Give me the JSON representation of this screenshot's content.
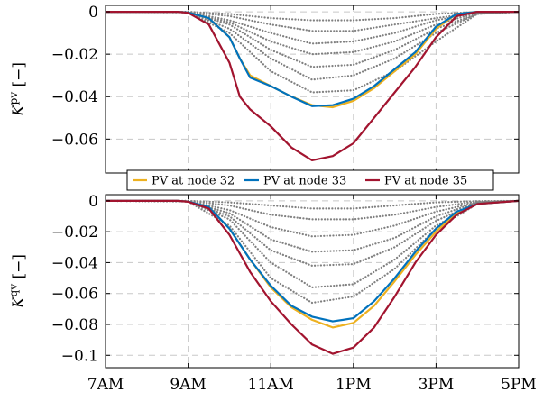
{
  "chart_data": [
    {
      "type": "line",
      "ylabel": "K^pv [−]",
      "ylabel_main": "K",
      "ylabel_sup": "pv",
      "ylabel_unit": " [−]",
      "xlim": [
        7,
        17
      ],
      "ylim": [
        -0.076,
        0.003
      ],
      "yticks": [
        0,
        -0.02,
        -0.04,
        -0.06
      ],
      "ytick_labels": [
        "0",
        "−0.02",
        "−0.04",
        "−0.06"
      ],
      "grid": true,
      "legend": "bottom-right",
      "colors": {
        "node32": "#EDB120",
        "node33": "#0072BD",
        "node35": "#A2142F",
        "other": "#808080"
      },
      "series": [
        {
          "name": "PV at node 32",
          "color": "#EDB120",
          "style": "solid",
          "x": [
            7,
            8,
            8.75,
            9,
            9.5,
            10,
            10.25,
            10.5,
            11,
            11.5,
            12,
            12.5,
            13,
            13.5,
            14,
            14.5,
            15,
            15.5,
            16,
            17
          ],
          "y": [
            0,
            0,
            0,
            -0.0003,
            -0.003,
            -0.012,
            -0.022,
            -0.03,
            -0.035,
            -0.04,
            -0.044,
            -0.045,
            -0.042,
            -0.036,
            -0.028,
            -0.02,
            -0.008,
            -0.001,
            0,
            0
          ]
        },
        {
          "name": "PV at node 33",
          "color": "#0072BD",
          "style": "solid",
          "x": [
            7,
            8,
            8.75,
            9,
            9.5,
            10,
            10.25,
            10.5,
            11,
            11.5,
            12,
            12.5,
            13,
            13.5,
            14,
            14.5,
            15,
            15.5,
            16,
            17
          ],
          "y": [
            0,
            0,
            0,
            -0.0003,
            -0.003,
            -0.012,
            -0.022,
            -0.031,
            -0.035,
            -0.04,
            -0.0445,
            -0.044,
            -0.041,
            -0.035,
            -0.027,
            -0.019,
            -0.007,
            -0.001,
            0,
            0
          ]
        },
        {
          "name": "PV at node 35",
          "color": "#A2142F",
          "style": "solid",
          "x": [
            7,
            8,
            8.75,
            9,
            9.5,
            10,
            10.25,
            10.5,
            11,
            11.5,
            12,
            12.5,
            13,
            13.5,
            14,
            14.5,
            15,
            15.5,
            16,
            17
          ],
          "y": [
            0,
            0,
            0,
            -0.0005,
            -0.006,
            -0.024,
            -0.04,
            -0.046,
            -0.054,
            -0.064,
            -0.07,
            -0.068,
            -0.062,
            -0.05,
            -0.038,
            -0.026,
            -0.012,
            -0.002,
            0,
            0
          ]
        },
        {
          "color": "#808080",
          "style": "dotted",
          "x": [
            7,
            9,
            10,
            11,
            12,
            13,
            14,
            15,
            16,
            17
          ],
          "y": [
            0,
            -0.0002,
            -0.008,
            -0.022,
            -0.032,
            -0.03,
            -0.022,
            -0.01,
            -0.001,
            0
          ]
        },
        {
          "color": "#808080",
          "style": "dotted",
          "x": [
            7,
            9,
            10,
            11,
            12,
            13,
            14,
            15,
            16,
            17
          ],
          "y": [
            0,
            -0.0002,
            -0.006,
            -0.018,
            -0.026,
            -0.025,
            -0.018,
            -0.008,
            -0.001,
            0
          ]
        },
        {
          "color": "#808080",
          "style": "dotted",
          "x": [
            7,
            9,
            10,
            11,
            12,
            13,
            14,
            15,
            16,
            17
          ],
          "y": [
            0,
            -0.0002,
            -0.005,
            -0.014,
            -0.02,
            -0.019,
            -0.014,
            -0.006,
            -0.0005,
            0
          ]
        },
        {
          "color": "#808080",
          "style": "dotted",
          "x": [
            7,
            9,
            10,
            11,
            12,
            13,
            14,
            15,
            16,
            17
          ],
          "y": [
            0,
            -0.0001,
            -0.004,
            -0.01,
            -0.015,
            -0.014,
            -0.01,
            -0.004,
            -0.0005,
            0
          ]
        },
        {
          "color": "#808080",
          "style": "dotted",
          "x": [
            7,
            9,
            10,
            11,
            12,
            13,
            14,
            15,
            16,
            17
          ],
          "y": [
            0,
            -0.0001,
            -0.002,
            -0.006,
            -0.009,
            -0.009,
            -0.006,
            -0.003,
            -0.0003,
            0
          ]
        },
        {
          "color": "#808080",
          "style": "dotted",
          "x": [
            7,
            9,
            10,
            11,
            12,
            13,
            14,
            15,
            16,
            17
          ],
          "y": [
            0,
            0,
            -0.001,
            -0.003,
            -0.004,
            -0.004,
            -0.003,
            -0.001,
            -0.0001,
            0
          ]
        },
        {
          "color": "#808080",
          "style": "dotted",
          "x": [
            7,
            9,
            10,
            11,
            12,
            13,
            14,
            15,
            16,
            17
          ],
          "y": [
            0,
            -0.0003,
            -0.01,
            -0.028,
            -0.038,
            -0.037,
            -0.028,
            -0.014,
            -0.001,
            0
          ]
        }
      ]
    },
    {
      "type": "line",
      "ylabel": "K^qv [−]",
      "ylabel_main": "K",
      "ylabel_sup": "qv",
      "ylabel_unit": " [−]",
      "xlim": [
        7,
        17
      ],
      "ylim": [
        -0.108,
        0.004
      ],
      "yticks": [
        0,
        -0.02,
        -0.04,
        -0.06,
        -0.08,
        -0.1
      ],
      "ytick_labels": [
        "0",
        "−0.02",
        "−0.04",
        "−0.06",
        "−0.08",
        "−0.1"
      ],
      "xticks": [
        7,
        9,
        11,
        13,
        15,
        17
      ],
      "xtick_labels": [
        "7AM",
        "9AM",
        "11AM",
        "1PM",
        "3PM",
        "5PM"
      ],
      "grid": true,
      "series": [
        {
          "name": "PV at node 32",
          "color": "#EDB120",
          "style": "solid",
          "x": [
            7,
            8,
            8.75,
            9,
            9.5,
            10,
            10.5,
            11,
            11.5,
            12,
            12.5,
            13,
            13.5,
            14,
            14.5,
            15,
            15.5,
            16,
            17
          ],
          "y": [
            0,
            0,
            0,
            -0.0005,
            -0.004,
            -0.018,
            -0.038,
            -0.056,
            -0.069,
            -0.077,
            -0.082,
            -0.079,
            -0.068,
            -0.052,
            -0.035,
            -0.02,
            -0.008,
            -0.002,
            0
          ]
        },
        {
          "name": "PV at node 33",
          "color": "#0072BD",
          "style": "solid",
          "x": [
            7,
            8,
            8.75,
            9,
            9.5,
            10,
            10.5,
            11,
            11.5,
            12,
            12.5,
            13,
            13.5,
            14,
            14.5,
            15,
            15.5,
            16,
            17
          ],
          "y": [
            0,
            0,
            0,
            -0.0005,
            -0.004,
            -0.018,
            -0.038,
            -0.055,
            -0.068,
            -0.075,
            -0.078,
            -0.076,
            -0.065,
            -0.05,
            -0.033,
            -0.018,
            -0.007,
            -0.002,
            0
          ]
        },
        {
          "name": "PV at node 35",
          "color": "#A2142F",
          "style": "solid",
          "x": [
            7,
            8,
            8.75,
            9,
            9.5,
            10,
            10.5,
            11,
            11.5,
            12,
            12.5,
            13,
            13.5,
            14,
            14.5,
            15,
            15.5,
            16,
            17
          ],
          "y": [
            0,
            0,
            0,
            -0.0006,
            -0.005,
            -0.022,
            -0.046,
            -0.065,
            -0.08,
            -0.093,
            -0.099,
            -0.095,
            -0.082,
            -0.062,
            -0.04,
            -0.022,
            -0.009,
            -0.002,
            0
          ]
        },
        {
          "color": "#808080",
          "style": "dotted",
          "x": [
            7,
            9,
            10,
            11,
            12,
            13,
            14,
            15,
            16,
            17
          ],
          "y": [
            0,
            -0.0005,
            -0.016,
            -0.05,
            -0.066,
            -0.062,
            -0.044,
            -0.018,
            -0.002,
            0
          ]
        },
        {
          "color": "#808080",
          "style": "dotted",
          "x": [
            7,
            9,
            10,
            11,
            12,
            13,
            14,
            15,
            16,
            17
          ],
          "y": [
            0,
            -0.0004,
            -0.012,
            -0.04,
            -0.056,
            -0.054,
            -0.038,
            -0.016,
            -0.002,
            0
          ]
        },
        {
          "color": "#808080",
          "style": "dotted",
          "x": [
            7,
            9,
            10,
            11,
            12,
            13,
            14,
            15,
            16,
            17
          ],
          "y": [
            0,
            -0.0003,
            -0.01,
            -0.032,
            -0.042,
            -0.041,
            -0.03,
            -0.013,
            -0.001,
            0
          ]
        },
        {
          "color": "#808080",
          "style": "dotted",
          "x": [
            7,
            9,
            10,
            11,
            12,
            13,
            14,
            15,
            16,
            17
          ],
          "y": [
            0,
            -0.0003,
            -0.008,
            -0.025,
            -0.033,
            -0.032,
            -0.024,
            -0.01,
            -0.001,
            0
          ]
        },
        {
          "color": "#808080",
          "style": "dotted",
          "x": [
            7,
            9,
            10,
            11,
            12,
            13,
            14,
            15,
            16,
            17
          ],
          "y": [
            0,
            -0.0002,
            -0.006,
            -0.017,
            -0.023,
            -0.022,
            -0.016,
            -0.007,
            -0.001,
            0
          ]
        },
        {
          "color": "#808080",
          "style": "dotted",
          "x": [
            7,
            9,
            10,
            11,
            12,
            13,
            14,
            15,
            16,
            17
          ],
          "y": [
            0,
            -0.0001,
            -0.003,
            -0.009,
            -0.012,
            -0.012,
            -0.009,
            -0.004,
            -0.0005,
            0
          ]
        },
        {
          "color": "#808080",
          "style": "dotted",
          "x": [
            7,
            9,
            10,
            11,
            12,
            13,
            14,
            15,
            16,
            17
          ],
          "y": [
            0,
            0,
            -0.001,
            -0.003,
            -0.005,
            -0.005,
            -0.003,
            -0.001,
            -0.0002,
            0
          ]
        }
      ]
    }
  ]
}
